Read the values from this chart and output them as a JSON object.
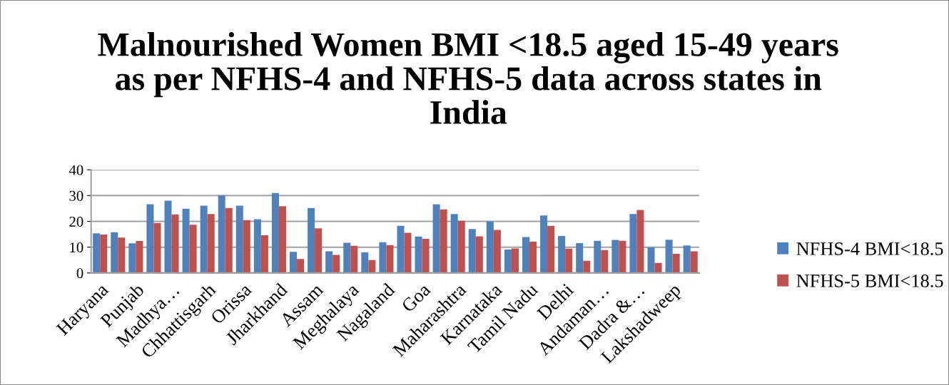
{
  "chart_data": {
    "type": "bar",
    "title": "Malnourished Women BMI <18.5 aged 15-49 years\nas per NFHS-4 and NFHS-5 data across states in\nIndia",
    "categories": [
      "Haryana",
      null,
      "Punjab",
      null,
      "Madhya…",
      null,
      "Chhattisgarh",
      null,
      "Orissa",
      null,
      "Jharkhand",
      null,
      "Assam",
      null,
      "Meghalaya",
      null,
      "Nagaland",
      null,
      "Goa",
      null,
      "Maharashtra",
      null,
      "Karnataka",
      null,
      "Tamil Nadu",
      null,
      "Delhi",
      null,
      "Andaman…",
      null,
      "Dadra &…",
      null,
      "Lakshadweep",
      null
    ],
    "series": [
      {
        "name": "NFHS-4 BMI<18.5",
        "color": "#4f81bd",
        "values": [
          15.4,
          15.8,
          11.5,
          26.6,
          28.0,
          24.9,
          26.1,
          30.0,
          26.1,
          20.8,
          31.0,
          8.2,
          25.2,
          8.4,
          11.7,
          8.0,
          11.9,
          18.3,
          14.1,
          26.6,
          22.8,
          17.0,
          20.0,
          9.1,
          13.9,
          22.3,
          14.3,
          11.6,
          12.5,
          12.8,
          22.8,
          9.9,
          12.9,
          10.7
        ]
      },
      {
        "name": "NFHS-5 BMI<18.5",
        "color": "#c0504d",
        "values": [
          14.9,
          13.7,
          12.4,
          19.4,
          22.7,
          18.7,
          22.8,
          25.2,
          20.5,
          14.6,
          25.9,
          5.4,
          17.3,
          7.0,
          10.5,
          5.0,
          10.8,
          15.6,
          13.2,
          24.6,
          20.2,
          14.2,
          16.7,
          9.5,
          12.1,
          18.3,
          9.4,
          4.7,
          8.9,
          12.5,
          24.4,
          3.9,
          7.4,
          8.4
        ]
      }
    ],
    "ylim": [
      0,
      40
    ],
    "yticks": [
      0,
      10,
      20,
      30,
      40
    ],
    "grid": "y",
    "legend": "right"
  }
}
